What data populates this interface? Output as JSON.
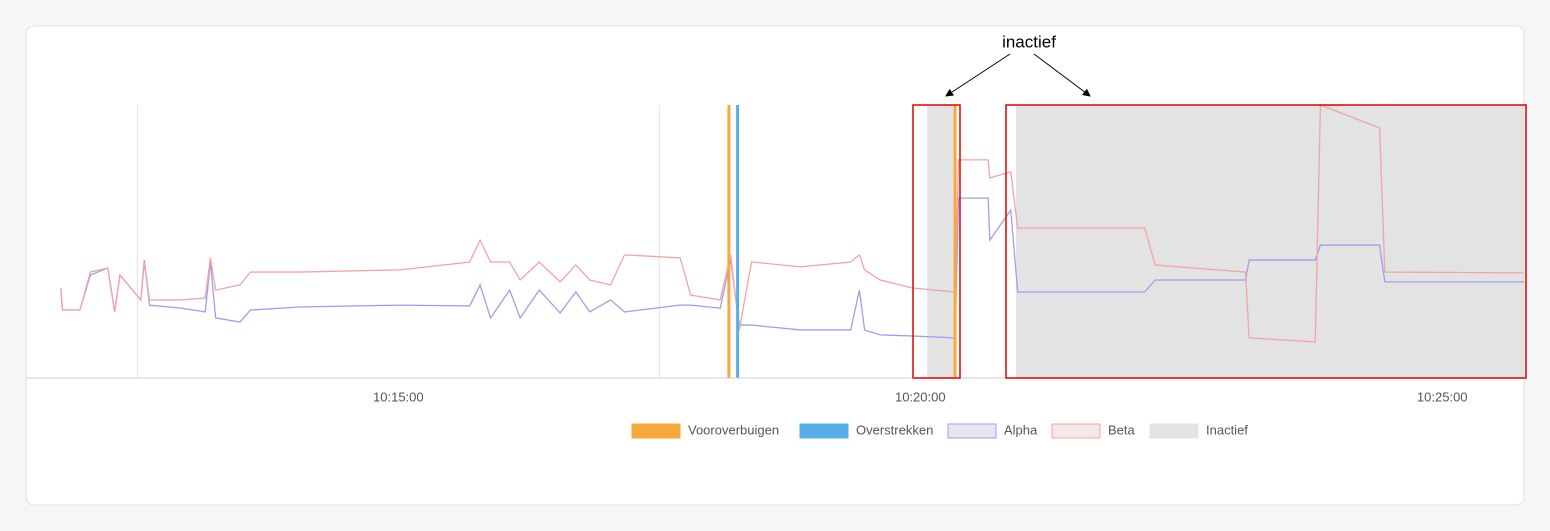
{
  "chart_data": {
    "type": "line",
    "annotation": "inactief",
    "xlim": [
      "10:11:26",
      "10:25:47"
    ],
    "xticks": [
      "10:15:00",
      "10:20:00",
      "10:25:00"
    ],
    "x_grid_lines": [
      "10:12:30",
      "10:17:30",
      "10:22:30"
    ],
    "ylim": [
      0,
      100
    ],
    "x": [
      "10:11:46",
      "10:11:47",
      "10:11:57",
      "10:12:03",
      "10:12:13",
      "10:12:17",
      "10:12:20",
      "10:12:32",
      "10:12:34",
      "10:12:37",
      "10:12:55",
      "10:13:09",
      "10:13:12",
      "10:13:15",
      "10:13:29",
      "10:13:35",
      "10:14:03",
      "10:15:01",
      "10:15:41",
      "10:15:47",
      "10:15:53",
      "10:16:04",
      "10:16:10",
      "10:16:21",
      "10:16:33",
      "10:16:42",
      "10:16:50",
      "10:17:02",
      "10:17:10",
      "10:17:42",
      "10:17:48",
      "10:18:05",
      "10:18:11",
      "10:18:16",
      "10:18:23",
      "10:18:51",
      "10:19:20",
      "10:19:25",
      "10:19:28",
      "10:19:37",
      "10:19:55",
      "10:20:20",
      "10:20:22",
      "10:20:39",
      "10:20:40",
      "10:20:52",
      "10:20:56",
      "10:22:09",
      "10:22:15",
      "10:23:07",
      "10:23:09",
      "10:23:47",
      "10:23:50",
      "10:24:24",
      "10:24:27",
      "10:25:47"
    ],
    "events": [
      {
        "name": "Vooroverbuigen",
        "color": "#f7a93b",
        "x": [
          "10:18:10",
          "10:20:20"
        ]
      },
      {
        "name": "Overstrekken",
        "color": "#5aaee8",
        "x": [
          "10:18:15"
        ]
      }
    ],
    "series": [
      {
        "name": "Alpha",
        "color": "#9e9ef0",
        "values": [
          32.2,
          24.9,
          24.9,
          37.7,
          40.3,
          24.2,
          37.7,
          28.6,
          43.2,
          26.7,
          25.6,
          24.2,
          42.5,
          22,
          20.5,
          24.9,
          26,
          26.7,
          26.4,
          34.1,
          22,
          32.2,
          22,
          32.2,
          23.8,
          31.5,
          24.2,
          28.6,
          24.2,
          26.7,
          26.7,
          25.6,
          43.2,
          19.4,
          19.4,
          17.6,
          17.6,
          32.2,
          17.6,
          15.8,
          15.4,
          14.7,
          65.9,
          65.9,
          50.5,
          61.5,
          31.5,
          31.5,
          35.9,
          35.9,
          43.2,
          43.2,
          48.7,
          48.7,
          35.2,
          35.2
        ]
      },
      {
        "name": "Beta",
        "color": "#f4a3a3",
        "values": [
          33,
          24.9,
          24.9,
          38.8,
          40.3,
          24.2,
          37.7,
          28.6,
          42.5,
          28.6,
          28.6,
          29.3,
          44,
          32.2,
          34.1,
          38.8,
          38.8,
          39.6,
          42.5,
          50.5,
          42.5,
          42.5,
          35.9,
          42.5,
          35.2,
          41.4,
          35.9,
          34.1,
          45.1,
          44,
          30.4,
          28.6,
          45.1,
          17.6,
          42.5,
          40.7,
          42.5,
          45.1,
          39.6,
          35.9,
          33,
          31.5,
          79.9,
          79.9,
          73.3,
          75.5,
          54.9,
          54.9,
          41.4,
          38.8,
          14.7,
          13.2,
          100,
          91.6,
          38.8,
          38.5
        ]
      }
    ],
    "inactive": {
      "name": "Inactief",
      "color": "#e3e3e3",
      "ranges": [
        [
          "10:20:04",
          "10:20:20"
        ],
        [
          "10:20:55",
          "10:25:47"
        ]
      ]
    }
  }
}
